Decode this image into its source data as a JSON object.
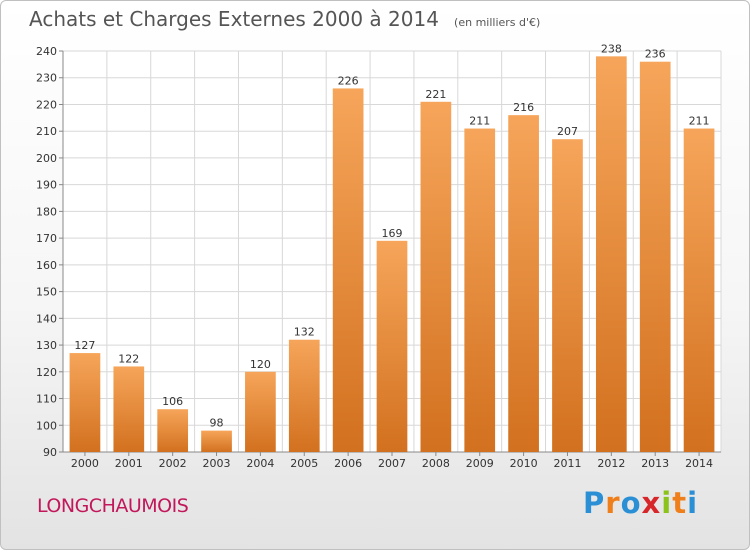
{
  "title": "Achats et Charges Externes 2000 à 2014",
  "unit": "(en milliers d'€)",
  "commune": "LONGCHAUMOIS",
  "logo": {
    "letters": [
      "P",
      "r",
      "o",
      "x",
      "i",
      "t",
      "i"
    ]
  },
  "colors": {
    "bar_light": "#f6a55a",
    "bar_dark": "#d2711f",
    "grid": "#d8d8d8",
    "axis": "#888888",
    "commune": "#c2185b"
  },
  "chart_data": {
    "type": "bar",
    "title": "Achats et Charges Externes 2000 à 2014",
    "subtitle": "(en milliers d'€)",
    "xlabel": "",
    "ylabel": "",
    "categories": [
      "2000",
      "2001",
      "2002",
      "2003",
      "2004",
      "2005",
      "2006",
      "2007",
      "2008",
      "2009",
      "2010",
      "2011",
      "2012",
      "2013",
      "2014"
    ],
    "values": [
      127,
      122,
      106,
      98,
      120,
      132,
      226,
      169,
      221,
      211,
      216,
      207,
      238,
      236,
      211
    ],
    "ylim": [
      90,
      240
    ],
    "yticks": [
      90,
      100,
      110,
      120,
      130,
      140,
      150,
      160,
      170,
      180,
      190,
      200,
      210,
      220,
      230,
      240
    ],
    "grid": true,
    "legend": "none"
  }
}
